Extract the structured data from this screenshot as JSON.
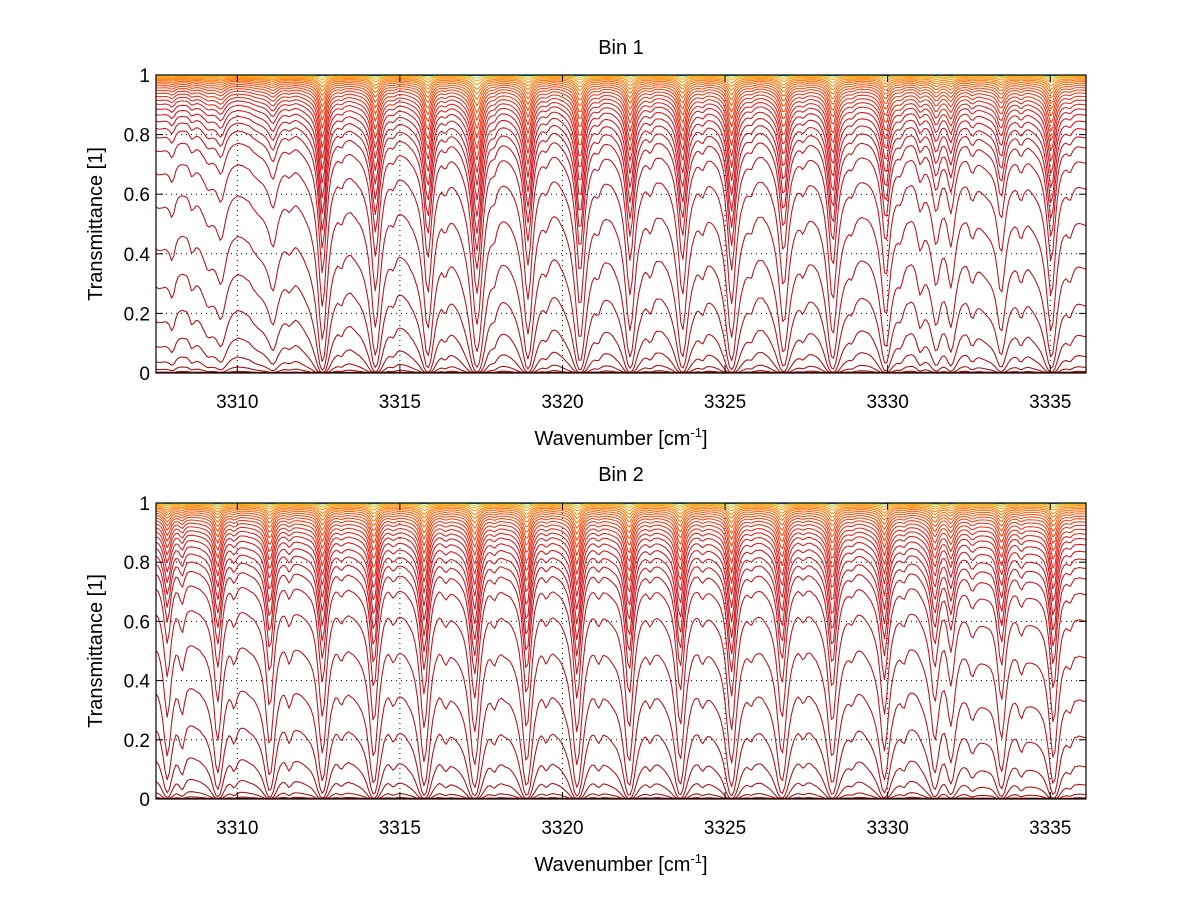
{
  "figure": {
    "background": "#ffffff"
  },
  "chart_data": [
    {
      "type": "line",
      "title": "Bin 1",
      "xlabel": "Wavenumber [cm",
      "xlabel_superscript": "-1",
      "xlabel_suffix": "]",
      "ylabel": "Transmittance [1]",
      "xlim": [
        3307.5,
        3336.1
      ],
      "ylim": [
        0,
        1
      ],
      "grid": true,
      "xticks": [
        3310,
        3315,
        3320,
        3325,
        3330,
        3335
      ],
      "xtick_labels": [
        "3310",
        "3315",
        "3320",
        "3325",
        "3330",
        "3335"
      ],
      "yticks": [
        0,
        0.2,
        0.4,
        0.6,
        0.8,
        1
      ],
      "ytick_labels": [
        "0",
        "0.2",
        "0.4",
        "0.6",
        "0.8",
        "1"
      ],
      "series_description": "Family of ~32 transmittance spectra for increasing absorber amount; colored yellow/orange (T near 1) to dark red (T near 0)",
      "continuum": {
        "left_tau": 0.006,
        "right_tau": 0.0075
      },
      "absorber_scales": [
        0.05,
        0.3,
        0.6,
        1,
        1.5,
        2,
        2.6,
        3.3,
        4.1,
        5,
        6,
        7.2,
        8.6,
        10.2,
        12,
        14,
        16.5,
        19.5,
        23,
        27,
        32,
        40,
        55,
        80,
        120,
        170,
        240,
        330,
        450,
        600,
        800,
        1100
      ],
      "lines": [
        {
          "center": 3308.0,
          "strength": 0.0015,
          "width": 0.1
        },
        {
          "center": 3308.6,
          "strength": 0.001,
          "width": 0.1
        },
        {
          "center": 3309.1,
          "strength": 0.0012,
          "width": 0.12
        },
        {
          "center": 3309.5,
          "strength": 0.003,
          "width": 0.15
        },
        {
          "center": 3311.1,
          "strength": 0.0035,
          "width": 0.15
        },
        {
          "center": 3311.6,
          "strength": 0.001,
          "width": 0.12
        },
        {
          "center": 3312.62,
          "strength": 0.02,
          "width": 0.12
        },
        {
          "center": 3313.2,
          "strength": 0.0012,
          "width": 0.1
        },
        {
          "center": 3314.25,
          "strength": 0.016,
          "width": 0.13
        },
        {
          "center": 3314.8,
          "strength": 0.0012,
          "width": 0.1
        },
        {
          "center": 3315.86,
          "strength": 0.016,
          "width": 0.13
        },
        {
          "center": 3316.4,
          "strength": 0.0015,
          "width": 0.1
        },
        {
          "center": 3317.37,
          "strength": 0.025,
          "width": 0.15
        },
        {
          "center": 3317.9,
          "strength": 0.0015,
          "width": 0.1
        },
        {
          "center": 3318.94,
          "strength": 0.017,
          "width": 0.13
        },
        {
          "center": 3319.5,
          "strength": 0.0015,
          "width": 0.1
        },
        {
          "center": 3320.54,
          "strength": 0.019,
          "width": 0.13
        },
        {
          "center": 3321.1,
          "strength": 0.0015,
          "width": 0.1
        },
        {
          "center": 3322.08,
          "strength": 0.016,
          "width": 0.13
        },
        {
          "center": 3322.7,
          "strength": 0.0015,
          "width": 0.1
        },
        {
          "center": 3323.69,
          "strength": 0.016,
          "width": 0.13
        },
        {
          "center": 3324.3,
          "strength": 0.0015,
          "width": 0.1
        },
        {
          "center": 3325.2,
          "strength": 0.018,
          "width": 0.13
        },
        {
          "center": 3325.8,
          "strength": 0.0012,
          "width": 0.1
        },
        {
          "center": 3326.8,
          "strength": 0.014,
          "width": 0.13
        },
        {
          "center": 3327.4,
          "strength": 0.0012,
          "width": 0.1
        },
        {
          "center": 3328.31,
          "strength": 0.017,
          "width": 0.13
        },
        {
          "center": 3328.9,
          "strength": 0.0012,
          "width": 0.1
        },
        {
          "center": 3329.94,
          "strength": 0.012,
          "width": 0.13
        },
        {
          "center": 3330.4,
          "strength": 0.0015,
          "width": 0.1
        },
        {
          "center": 3331.0,
          "strength": 0.003,
          "width": 0.12
        },
        {
          "center": 3331.49,
          "strength": 0.006,
          "width": 0.13
        },
        {
          "center": 3331.95,
          "strength": 0.007,
          "width": 0.13
        },
        {
          "center": 3332.6,
          "strength": 0.002,
          "width": 0.1
        },
        {
          "center": 3333.49,
          "strength": 0.008,
          "width": 0.13
        },
        {
          "center": 3334.1,
          "strength": 0.002,
          "width": 0.1
        },
        {
          "center": 3335.03,
          "strength": 0.016,
          "width": 0.13
        },
        {
          "center": 3335.6,
          "strength": 0.0015,
          "width": 0.1
        }
      ]
    },
    {
      "type": "line",
      "title": "Bin 2",
      "xlabel": "Wavenumber [cm",
      "xlabel_superscript": "-1",
      "xlabel_suffix": "]",
      "ylabel": "Transmittance [1]",
      "xlim": [
        3307.5,
        3336.1
      ],
      "ylim": [
        0,
        1
      ],
      "grid": true,
      "xticks": [
        3310,
        3315,
        3320,
        3325,
        3330,
        3335
      ],
      "xtick_labels": [
        "3310",
        "3315",
        "3320",
        "3325",
        "3330",
        "3335"
      ],
      "yticks": [
        0,
        0.2,
        0.4,
        0.6,
        0.8,
        1
      ],
      "ytick_labels": [
        "0",
        "0.2",
        "0.4",
        "0.6",
        "0.8",
        "1"
      ],
      "series_description": "Family of ~32 transmittance spectra for increasing absorber amount; colored yellow/orange (T near 1) to dark red (T near 0)",
      "continuum": {
        "left_tau": 0.0065,
        "right_tau": 0.0075
      },
      "absorber_scales": [
        0.05,
        0.3,
        0.6,
        1,
        1.5,
        2,
        2.6,
        3.3,
        4.1,
        5,
        6,
        7.2,
        8.6,
        10.2,
        12,
        14,
        16.5,
        19.5,
        23,
        27,
        32,
        40,
        55,
        80,
        120,
        170,
        240,
        330,
        450,
        600,
        800,
        1100
      ],
      "lines": [
        {
          "center": 3307.85,
          "strength": 0.009,
          "width": 0.12
        },
        {
          "center": 3308.3,
          "strength": 0.003,
          "width": 0.1
        },
        {
          "center": 3309.4,
          "strength": 0.013,
          "width": 0.13
        },
        {
          "center": 3309.9,
          "strength": 0.002,
          "width": 0.1
        },
        {
          "center": 3311.0,
          "strength": 0.014,
          "width": 0.13
        },
        {
          "center": 3311.6,
          "strength": 0.002,
          "width": 0.1
        },
        {
          "center": 3312.62,
          "strength": 0.016,
          "width": 0.13
        },
        {
          "center": 3313.2,
          "strength": 0.0015,
          "width": 0.1
        },
        {
          "center": 3314.2,
          "strength": 0.017,
          "width": 0.13
        },
        {
          "center": 3314.8,
          "strength": 0.0015,
          "width": 0.1
        },
        {
          "center": 3315.75,
          "strength": 0.018,
          "width": 0.13
        },
        {
          "center": 3316.4,
          "strength": 0.0015,
          "width": 0.1
        },
        {
          "center": 3317.3,
          "strength": 0.019,
          "width": 0.14
        },
        {
          "center": 3317.9,
          "strength": 0.0015,
          "width": 0.1
        },
        {
          "center": 3318.9,
          "strength": 0.018,
          "width": 0.13
        },
        {
          "center": 3319.5,
          "strength": 0.0015,
          "width": 0.1
        },
        {
          "center": 3320.45,
          "strength": 0.019,
          "width": 0.13
        },
        {
          "center": 3321.1,
          "strength": 0.0015,
          "width": 0.1
        },
        {
          "center": 3322.05,
          "strength": 0.018,
          "width": 0.13
        },
        {
          "center": 3322.7,
          "strength": 0.0015,
          "width": 0.1
        },
        {
          "center": 3323.62,
          "strength": 0.017,
          "width": 0.13
        },
        {
          "center": 3324.3,
          "strength": 0.0015,
          "width": 0.1
        },
        {
          "center": 3325.2,
          "strength": 0.018,
          "width": 0.13
        },
        {
          "center": 3325.8,
          "strength": 0.0012,
          "width": 0.1
        },
        {
          "center": 3326.75,
          "strength": 0.015,
          "width": 0.13
        },
        {
          "center": 3327.4,
          "strength": 0.0012,
          "width": 0.1
        },
        {
          "center": 3328.3,
          "strength": 0.016,
          "width": 0.13
        },
        {
          "center": 3328.9,
          "strength": 0.0012,
          "width": 0.1
        },
        {
          "center": 3329.9,
          "strength": 0.014,
          "width": 0.13
        },
        {
          "center": 3330.5,
          "strength": 0.0015,
          "width": 0.1
        },
        {
          "center": 3331.45,
          "strength": 0.011,
          "width": 0.13
        },
        {
          "center": 3331.95,
          "strength": 0.009,
          "width": 0.13
        },
        {
          "center": 3332.6,
          "strength": 0.002,
          "width": 0.1
        },
        {
          "center": 3333.5,
          "strength": 0.012,
          "width": 0.13
        },
        {
          "center": 3334.1,
          "strength": 0.002,
          "width": 0.1
        },
        {
          "center": 3335.1,
          "strength": 0.017,
          "width": 0.13
        },
        {
          "center": 3335.6,
          "strength": 0.0015,
          "width": 0.1
        }
      ]
    }
  ],
  "colormap": [
    "#1e64c8",
    "#3cb4a0",
    "#c8dc3c",
    "#ffd21e",
    "#ffa014",
    "#ff6e0a",
    "#f03c14",
    "#d2141e",
    "#b4141e",
    "#8c0a0a"
  ]
}
